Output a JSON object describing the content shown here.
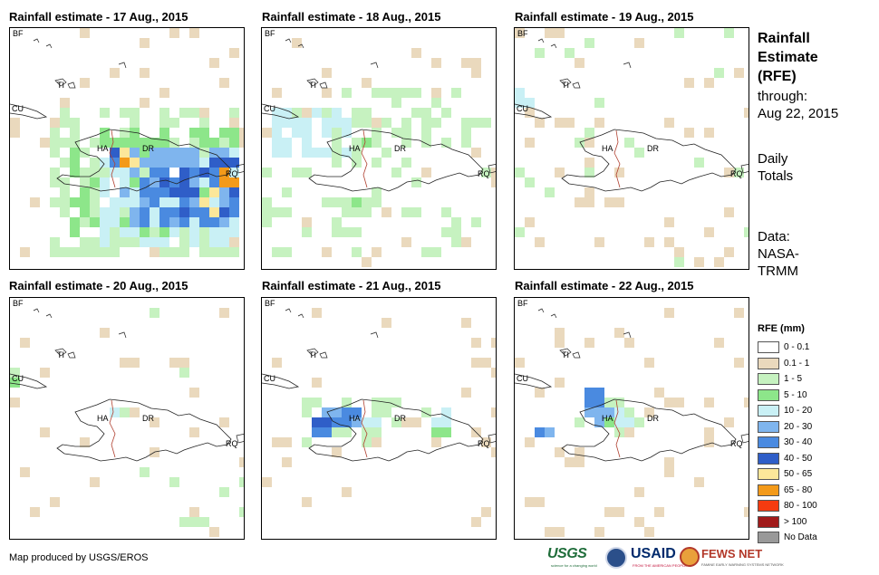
{
  "panels": [
    {
      "title": "Rainfall estimate - 17 Aug., 2015",
      "day": "17"
    },
    {
      "title": "Rainfall estimate - 18 Aug., 2015",
      "day": "18"
    },
    {
      "title": "Rainfall estimate - 19 Aug., 2015",
      "day": "19"
    },
    {
      "title": "Rainfall estimate - 20 Aug., 2015",
      "day": "20"
    },
    {
      "title": "Rainfall estimate - 21 Aug., 2015",
      "day": "21"
    },
    {
      "title": "Rainfall estimate - 22 Aug., 2015",
      "day": "22"
    }
  ],
  "map_labels": {
    "bf": "BF",
    "ti": "TI",
    "cu": "CU",
    "ha": "HA",
    "dr": "DR",
    "rq": "RQ"
  },
  "side": {
    "title_line1": "Rainfall",
    "title_line2": "Estimate",
    "title_line3": "(RFE)",
    "through_label": "through:",
    "through_date": "Aug 22, 2015",
    "daily_line1": "Daily",
    "daily_line2": "Totals",
    "data_line1": "Data:",
    "data_line2": "NASA-",
    "data_line3": "TRMM"
  },
  "legend": {
    "title": "RFE (mm)",
    "items": [
      {
        "label": "0 - 0.1",
        "color": "#ffffff"
      },
      {
        "label": "0.1 - 1",
        "color": "#ead9bd"
      },
      {
        "label": "1 - 5",
        "color": "#c6f2c0"
      },
      {
        "label": "5 - 10",
        "color": "#8de68a"
      },
      {
        "label": "10 - 20",
        "color": "#c9f0f5"
      },
      {
        "label": "20 - 30",
        "color": "#7fb5ee"
      },
      {
        "label": "30 - 40",
        "color": "#4a8ae0"
      },
      {
        "label": "40 - 50",
        "color": "#2f5ec8"
      },
      {
        "label": "50 - 65",
        "color": "#fce79a"
      },
      {
        "label": "65 - 80",
        "color": "#f39a1a"
      },
      {
        "label": "80 - 100",
        "color": "#f53b10"
      },
      {
        "label": "> 100",
        "color": "#a11b1b"
      },
      {
        "label": "No Data",
        "color": "#999999"
      }
    ]
  },
  "footer": {
    "credit": "Map produced by USGS/EROS"
  },
  "logos": {
    "usgs": "USGS",
    "usgs_tagline": "science for a changing world",
    "usaid": "USAID",
    "usaid_tagline": "FROM THE AMERICAN PEOPLE",
    "fews": "FEWS NET",
    "fews_tagline": "FAMINE EARLY WARNING SYSTEMS NETWORK"
  }
}
